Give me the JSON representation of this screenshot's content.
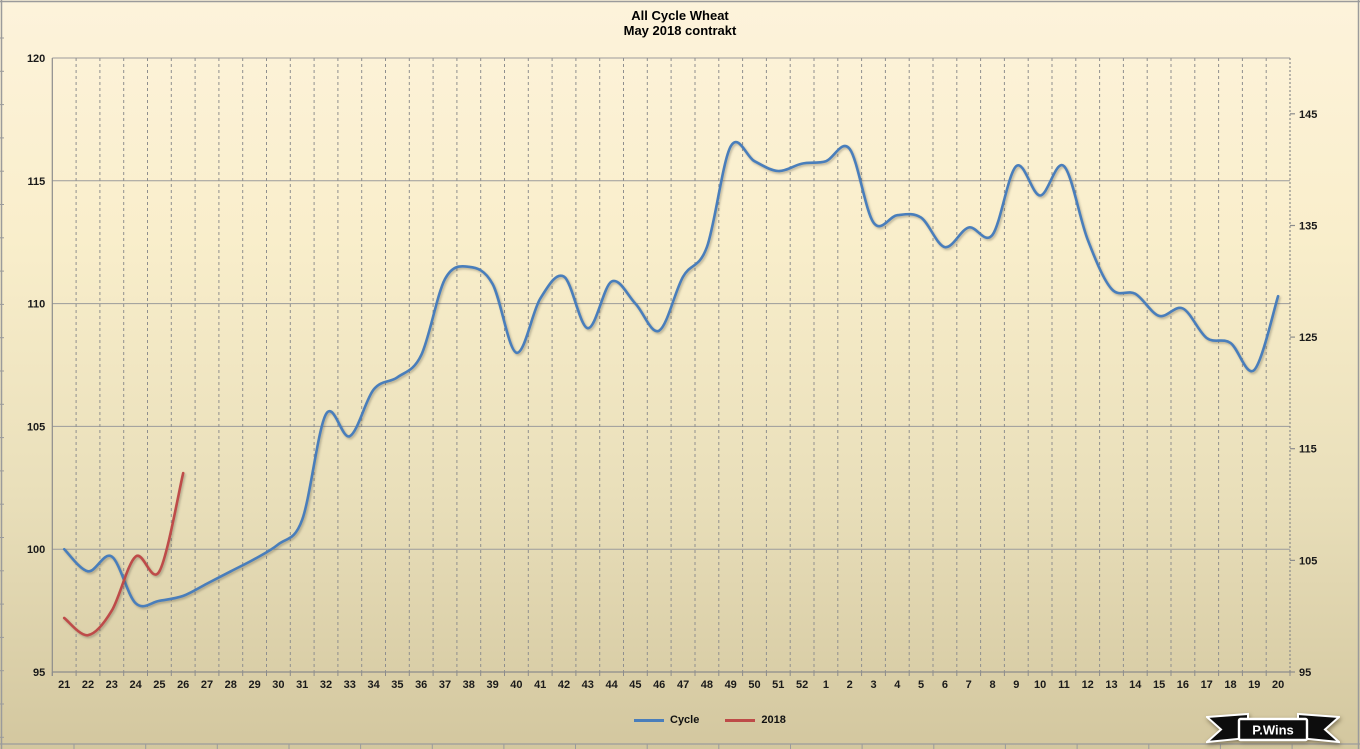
{
  "title": {
    "line1": "All Cycle Wheat",
    "line2": "May 2018 contrakt"
  },
  "legend": {
    "items": [
      {
        "label": "Cycle",
        "color": "#4a7ebb"
      },
      {
        "label": "2018",
        "color": "#be4b48"
      }
    ]
  },
  "watermark": {
    "label": "P.Wins"
  },
  "colors": {
    "background_top": "#fdf3db",
    "background_bottom": "#d3c79f",
    "horizontal_grid": "#9b9b9b",
    "vertical_grid": "#8f8f8f",
    "axis_line": "#8c8c8c",
    "label_text": "#1a1a1a",
    "series_cycle": "#4a7ebb",
    "series_2018": "#be4b48",
    "ribbon_fill": "#0d0d0d",
    "ribbon_stroke": "#ffffff"
  },
  "chart_data": {
    "type": "line",
    "title": "All Cycle Wheat",
    "subtitle": "May 2018 contrakt",
    "categories": [
      "21",
      "22",
      "23",
      "24",
      "25",
      "26",
      "27",
      "28",
      "29",
      "30",
      "31",
      "32",
      "33",
      "34",
      "35",
      "36",
      "37",
      "38",
      "39",
      "40",
      "41",
      "42",
      "43",
      "44",
      "45",
      "46",
      "47",
      "48",
      "49",
      "50",
      "51",
      "52",
      "1",
      "2",
      "3",
      "4",
      "5",
      "6",
      "7",
      "8",
      "9",
      "10",
      "11",
      "12",
      "13",
      "14",
      "15",
      "16",
      "17",
      "18",
      "19",
      "20"
    ],
    "xlabel": "",
    "ylabel": "",
    "left_axis": {
      "min": 95,
      "max": 120,
      "ticks": [
        95,
        100,
        105,
        110,
        115,
        120
      ]
    },
    "right_axis": {
      "min": 95,
      "max": 150,
      "ticks": [
        95,
        105,
        115,
        125,
        135,
        145
      ]
    },
    "grid": {
      "horizontal": "solid",
      "vertical": "dashed"
    },
    "legend_position": "bottom",
    "series": [
      {
        "name": "Cycle",
        "color": "#4a7ebb",
        "axis": "left",
        "start_index": 0,
        "values": [
          100.0,
          99.1,
          99.7,
          97.8,
          97.9,
          98.1,
          98.6,
          99.1,
          99.6,
          100.2,
          101.2,
          105.5,
          104.6,
          106.5,
          107.0,
          107.9,
          111.0,
          111.5,
          110.8,
          108.0,
          110.2,
          111.1,
          109.0,
          110.9,
          110.0,
          108.9,
          111.1,
          112.3,
          116.4,
          115.8,
          115.4,
          115.7,
          115.8,
          116.3,
          113.3,
          113.6,
          113.5,
          112.3,
          113.1,
          112.8,
          115.6,
          114.4,
          115.6,
          112.6,
          110.6,
          110.4,
          109.5,
          109.8,
          108.6,
          108.4,
          107.3,
          110.3
        ]
      },
      {
        "name": "2018",
        "color": "#be4b48",
        "axis": "left",
        "start_index": 0,
        "values": [
          97.2,
          96.5,
          97.5,
          99.7,
          99.1,
          103.1
        ]
      }
    ]
  }
}
